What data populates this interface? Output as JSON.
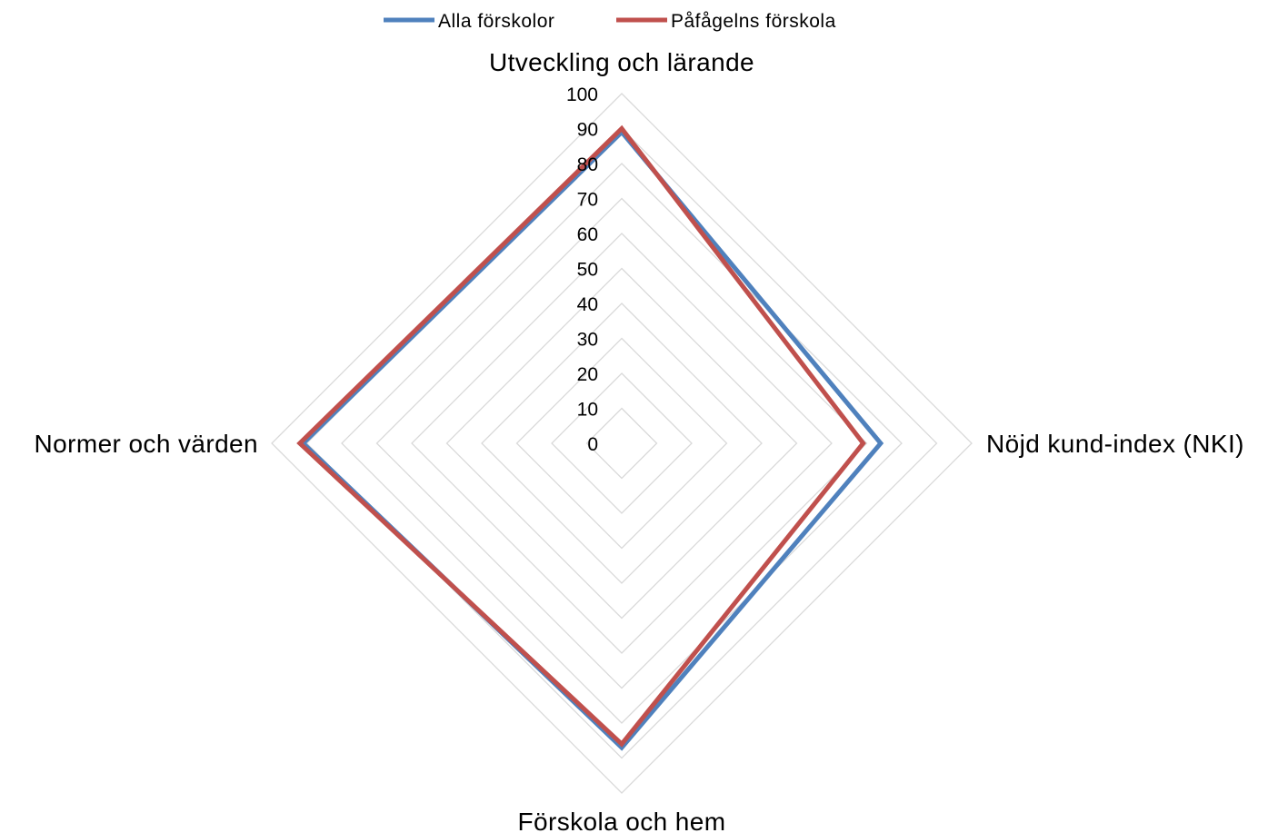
{
  "chart_data": {
    "type": "radar",
    "title": "",
    "axes": [
      "Utveckling och lärande",
      "Nöjd kund-index (NKI)",
      "Förskola och hem",
      "Normer och värden"
    ],
    "rlim": [
      0,
      100
    ],
    "ticks": [
      "0",
      "10",
      "20",
      "30",
      "40",
      "50",
      "60",
      "70",
      "80",
      "90",
      "100"
    ],
    "grid": true,
    "legend_position": "top",
    "series": [
      {
        "name": "Alla förskolor",
        "color": "#4F81BD",
        "values": [
          89,
          74,
          87,
          91
        ]
      },
      {
        "name": "Påfågelns förskola",
        "color": "#C0504D",
        "values": [
          90,
          69,
          86,
          92
        ]
      }
    ]
  }
}
